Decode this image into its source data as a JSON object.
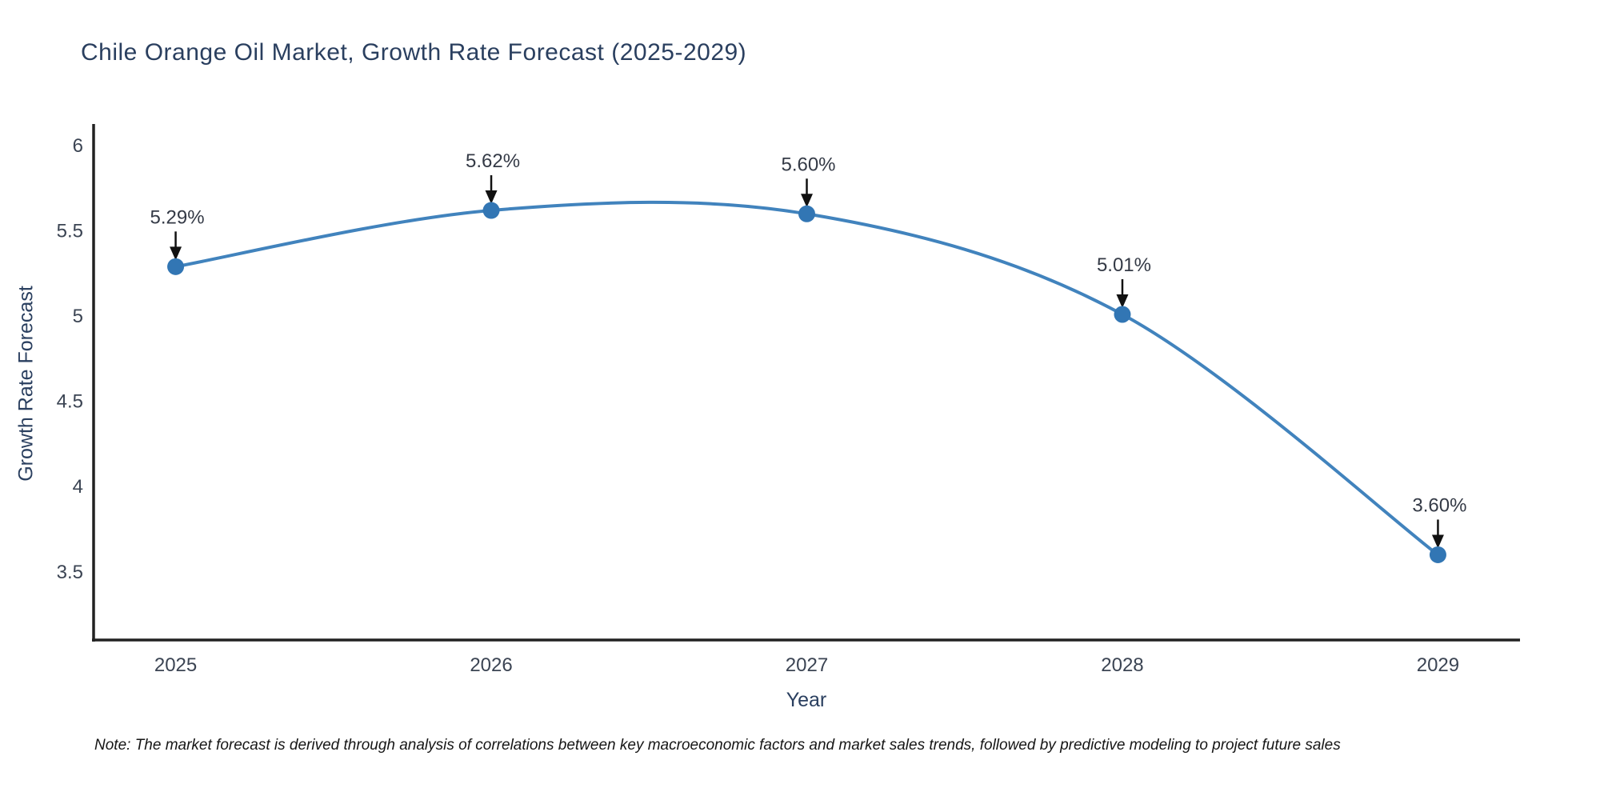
{
  "title": "Chile Orange Oil Market, Growth Rate Forecast (2025-2029)",
  "note": "Note: The market forecast is derived through analysis of correlations between key macroeconomic factors and market sales trends, followed by predictive modeling to project future sales",
  "chart_data": {
    "type": "line",
    "line_shape": "spline",
    "title": "Chile Orange Oil Market, Growth Rate Forecast (2025-2029)",
    "xlabel": "Year",
    "ylabel": "Growth Rate Forecast",
    "x": [
      2025,
      2026,
      2027,
      2028,
      2029
    ],
    "categories": [
      "2025",
      "2026",
      "2027",
      "2028",
      "2029"
    ],
    "values": [
      5.29,
      5.62,
      5.6,
      5.01,
      3.6
    ],
    "point_labels": [
      "5.29%",
      "5.62%",
      "5.60%",
      "5.01%",
      "3.60%"
    ],
    "y_tick_values": [
      6,
      5.5,
      5,
      4.5,
      4,
      3.5
    ],
    "y_tick_labels": [
      "6",
      "5.5",
      "5",
      "4.5",
      "4",
      "3.5"
    ],
    "xlim": [
      2024.74,
      2029.26
    ],
    "ylim": [
      3.1,
      6.127
    ],
    "grid": false,
    "legend": "none",
    "colors": {
      "line": "#4183bd",
      "marker": "#3276b4",
      "axis": "#222222",
      "tick_text": "#3b4453",
      "title_text": "#2a3f5f",
      "annotation_text": "#343a46",
      "annotation_arrow": "#111111",
      "background": "#ffffff"
    }
  }
}
